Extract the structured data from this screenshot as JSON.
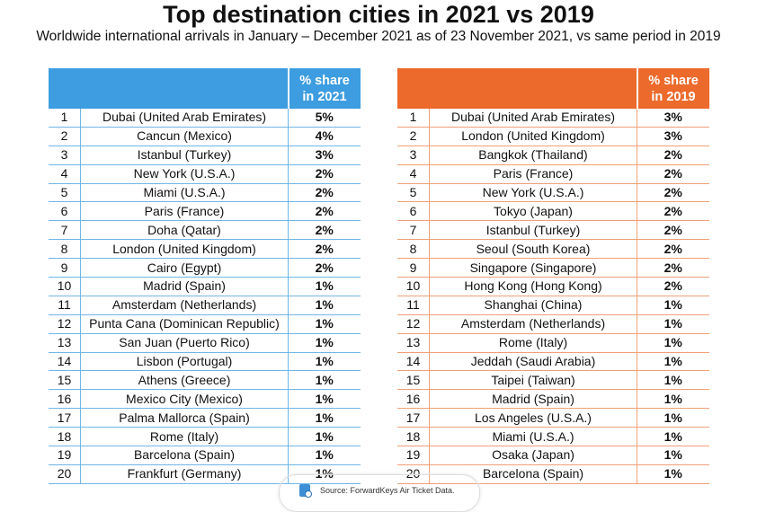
{
  "title": "Top destination cities in 2021 vs 2019",
  "subtitle": "Worldwide international arrivals in January – December 2021 as of 23 November 2021, vs same period in 2019",
  "colors": {
    "table_2021": "#3d9de0",
    "table_2019": "#ec6a2c"
  },
  "table_2021": {
    "header": "% share in 2021",
    "rows": [
      [
        "1",
        "Dubai (United Arab Emirates)",
        "5%"
      ],
      [
        "2",
        "Cancun (Mexico)",
        "4%"
      ],
      [
        "3",
        "Istanbul (Turkey)",
        "3%"
      ],
      [
        "4",
        "New York (U.S.A.)",
        "2%"
      ],
      [
        "5",
        "Miami (U.S.A.)",
        "2%"
      ],
      [
        "6",
        "Paris (France)",
        "2%"
      ],
      [
        "7",
        "Doha (Qatar)",
        "2%"
      ],
      [
        "8",
        "London (United Kingdom)",
        "2%"
      ],
      [
        "9",
        "Cairo (Egypt)",
        "2%"
      ],
      [
        "10",
        "Madrid (Spain)",
        "1%"
      ],
      [
        "11",
        "Amsterdam (Netherlands)",
        "1%"
      ],
      [
        "12",
        "Punta Cana (Dominican Republic)",
        "1%"
      ],
      [
        "13",
        "San Juan (Puerto Rico)",
        "1%"
      ],
      [
        "14",
        "Lisbon (Portugal)",
        "1%"
      ],
      [
        "15",
        "Athens (Greece)",
        "1%"
      ],
      [
        "16",
        "Mexico City (Mexico)",
        "1%"
      ],
      [
        "17",
        "Palma Mallorca (Spain)",
        "1%"
      ],
      [
        "18",
        "Rome (Italy)",
        "1%"
      ],
      [
        "19",
        "Barcelona (Spain)",
        "1%"
      ],
      [
        "20",
        "Frankfurt (Germany)",
        "1%"
      ]
    ]
  },
  "table_2019": {
    "header": "% share in 2019",
    "rows": [
      [
        "1",
        "Dubai (United Arab Emirates)",
        "3%"
      ],
      [
        "2",
        "London (United Kingdom)",
        "3%"
      ],
      [
        "3",
        "Bangkok (Thailand)",
        "2%"
      ],
      [
        "4",
        "Paris (France)",
        "2%"
      ],
      [
        "5",
        "New York (U.S.A.)",
        "2%"
      ],
      [
        "6",
        "Tokyo (Japan)",
        "2%"
      ],
      [
        "7",
        "Istanbul (Turkey)",
        "2%"
      ],
      [
        "8",
        "Seoul (South Korea)",
        "2%"
      ],
      [
        "9",
        "Singapore (Singapore)",
        "2%"
      ],
      [
        "10",
        "Hong Kong (Hong Kong)",
        "2%"
      ],
      [
        "11",
        "Shanghai (China)",
        "1%"
      ],
      [
        "12",
        "Amsterdam (Netherlands)",
        "1%"
      ],
      [
        "13",
        "Rome (Italy)",
        "1%"
      ],
      [
        "14",
        "Jeddah (Saudi Arabia)",
        "1%"
      ],
      [
        "15",
        "Taipei (Taiwan)",
        "1%"
      ],
      [
        "16",
        "Madrid (Spain)",
        "1%"
      ],
      [
        "17",
        "Los Angeles (U.S.A.)",
        "1%"
      ],
      [
        "18",
        "Miami (U.S.A.)",
        "1%"
      ],
      [
        "19",
        "Osaka (Japan)",
        "1%"
      ],
      [
        "20",
        "Barcelona (Spain)",
        "1%"
      ]
    ]
  },
  "source": {
    "icon": "document-search-icon",
    "text": "Source: ForwardKeys Air Ticket Data."
  }
}
